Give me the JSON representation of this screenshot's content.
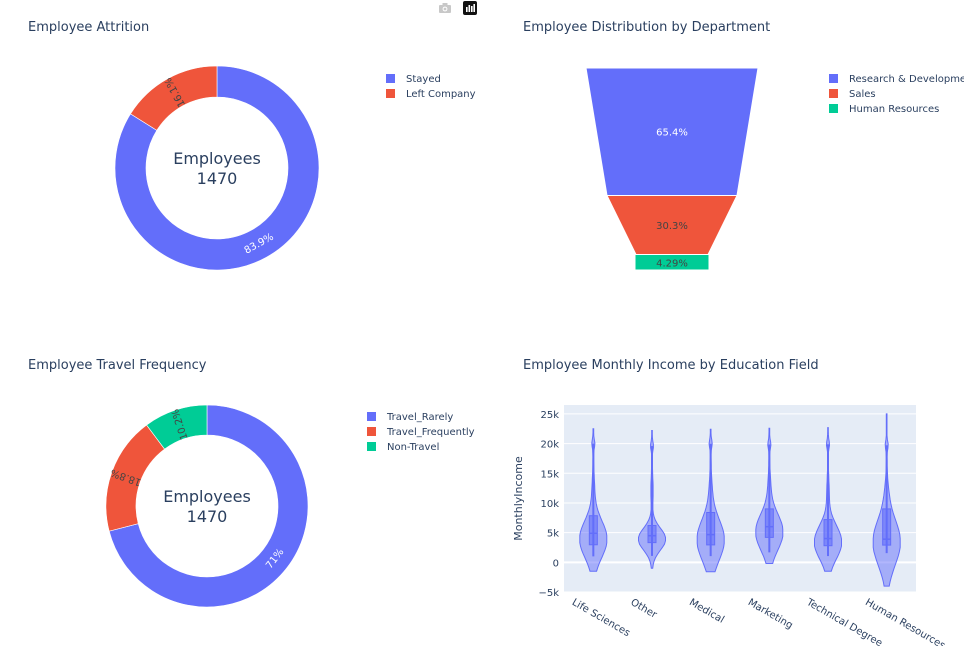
{
  "modebar": {
    "camera_icon": "camera-icon",
    "plotly_icon": "plotly-logo-icon"
  },
  "colors": {
    "blue": "#636efa",
    "red": "#ef553b",
    "green": "#00cc96",
    "text": "#2a3f5f",
    "plot_bg": "#e5ecf6"
  },
  "chart_data": [
    {
      "type": "pie",
      "title": "Employee Attrition",
      "center_text": [
        "Employees",
        "1470"
      ],
      "labels": [
        "Stayed",
        "Left Company"
      ],
      "values": [
        83.9,
        16.1
      ],
      "value_labels": [
        "83.9%",
        "16.1%"
      ],
      "colors": [
        "#636efa",
        "#ef553b"
      ],
      "hole": true,
      "legend_position": "top-right"
    },
    {
      "type": "funnel",
      "title": "Employee Distribution by Department",
      "labels": [
        "Research & Development",
        "Sales",
        "Human Resources"
      ],
      "values": [
        65.4,
        30.3,
        4.29
      ],
      "value_labels": [
        "65.4%",
        "30.3%",
        "4.29%"
      ],
      "colors": [
        "#636efa",
        "#ef553b",
        "#00cc96"
      ],
      "legend_position": "top-right"
    },
    {
      "type": "pie",
      "title": "Employee Travel Frequency",
      "center_text": [
        "Employees",
        "1470"
      ],
      "labels": [
        "Travel_Rarely",
        "Travel_Frequently",
        "Non-Travel"
      ],
      "values": [
        71,
        18.8,
        10.2
      ],
      "value_labels": [
        "71%",
        "18.8%",
        "10.2%"
      ],
      "colors": [
        "#636efa",
        "#ef553b",
        "#00cc96"
      ],
      "hole": true,
      "legend_position": "top-right"
    },
    {
      "type": "violin",
      "title": "Employee Monthly Income by Education Field",
      "ylabel": "MonthlyIncome",
      "xlabel": "",
      "ylim": [
        -5000,
        26500
      ],
      "y_ticks": [
        -5000,
        0,
        5000,
        10000,
        15000,
        20000,
        25000
      ],
      "y_tick_labels": [
        "−5k",
        "0",
        "5k",
        "10k",
        "15k",
        "20k",
        "25k"
      ],
      "grid": true,
      "categories": [
        "Life Sciences",
        "Other",
        "Medical",
        "Marketing",
        "Technical Degree",
        "Human Resources"
      ],
      "color": "#636efa",
      "stats": [
        {
          "min": 1009,
          "q1": 2957,
          "median": 4893,
          "q3": 7851,
          "max": 19999,
          "range": [
            -1500,
            22500
          ]
        },
        {
          "min": 1081,
          "q1": 3318,
          "median": 4480,
          "q3": 6200,
          "max": 19586,
          "range": [
            -1000,
            22200
          ]
        },
        {
          "min": 1051,
          "q1": 2933,
          "median": 4667,
          "q3": 8392,
          "max": 19973,
          "range": [
            -1600,
            22400
          ]
        },
        {
          "min": 1675,
          "q1": 4200,
          "median": 6000,
          "q3": 9000,
          "max": 19847,
          "range": [
            -200,
            22600
          ]
        },
        {
          "min": 1052,
          "q1": 2800,
          "median": 4000,
          "q3": 7200,
          "max": 19879,
          "range": [
            -1500,
            22700
          ]
        },
        {
          "min": 1555,
          "q1": 2900,
          "median": 3900,
          "q3": 9000,
          "max": 19717,
          "range": [
            -4000,
            25000
          ]
        }
      ]
    }
  ]
}
